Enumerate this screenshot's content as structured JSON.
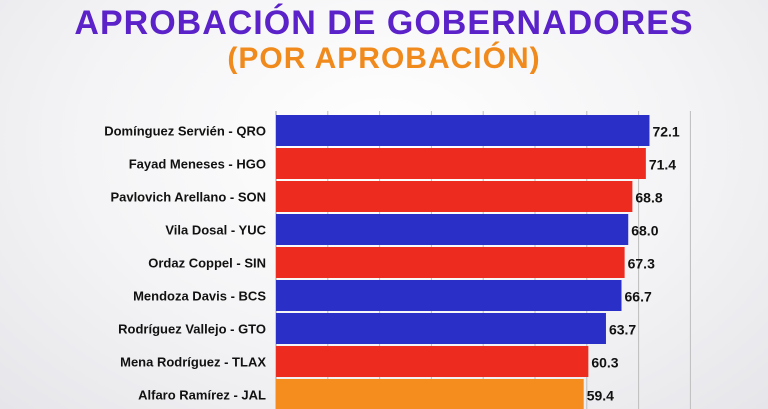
{
  "title": "APROBACIÓN DE GOBERNADORES",
  "subtitle": "(POR APROBACIÓN)",
  "colors": {
    "title": "#5a22c8",
    "subtitle": "#f08a1c",
    "blue": "#2a2fc8",
    "red": "#ee2b1f",
    "orange": "#f58c1e",
    "grid": "#bdbdbd"
  },
  "chart_data": {
    "type": "bar",
    "orientation": "horizontal",
    "title": "APROBACIÓN DE GOBERNADORES",
    "subtitle": "(POR APROBACIÓN)",
    "categories": [
      "Domínguez Servién - QRO",
      "Fayad Meneses - HGO",
      "Pavlovich Arellano - SON",
      "Vila Dosal - YUC",
      "Ordaz Coppel - SIN",
      "Mendoza Davis - BCS",
      "Rodríguez Vallejo - GTO",
      "Mena Rodríguez - TLAX",
      "Alfaro Ramírez - JAL"
    ],
    "values": [
      72.1,
      71.4,
      68.8,
      68.0,
      67.3,
      66.7,
      63.7,
      60.3,
      59.4
    ],
    "value_labels": [
      "72.1",
      "71.4",
      "68.8",
      "68.0",
      "67.3",
      "66.7",
      "63.7",
      "60.3",
      "59.4"
    ],
    "bar_colors": [
      "#2a2fc8",
      "#ee2b1f",
      "#ee2b1f",
      "#2a2fc8",
      "#ee2b1f",
      "#2a2fc8",
      "#2a2fc8",
      "#ee2b1f",
      "#f58c1e"
    ],
    "xlim": [
      0,
      80
    ],
    "grid": true,
    "xlabel": "",
    "ylabel": ""
  }
}
